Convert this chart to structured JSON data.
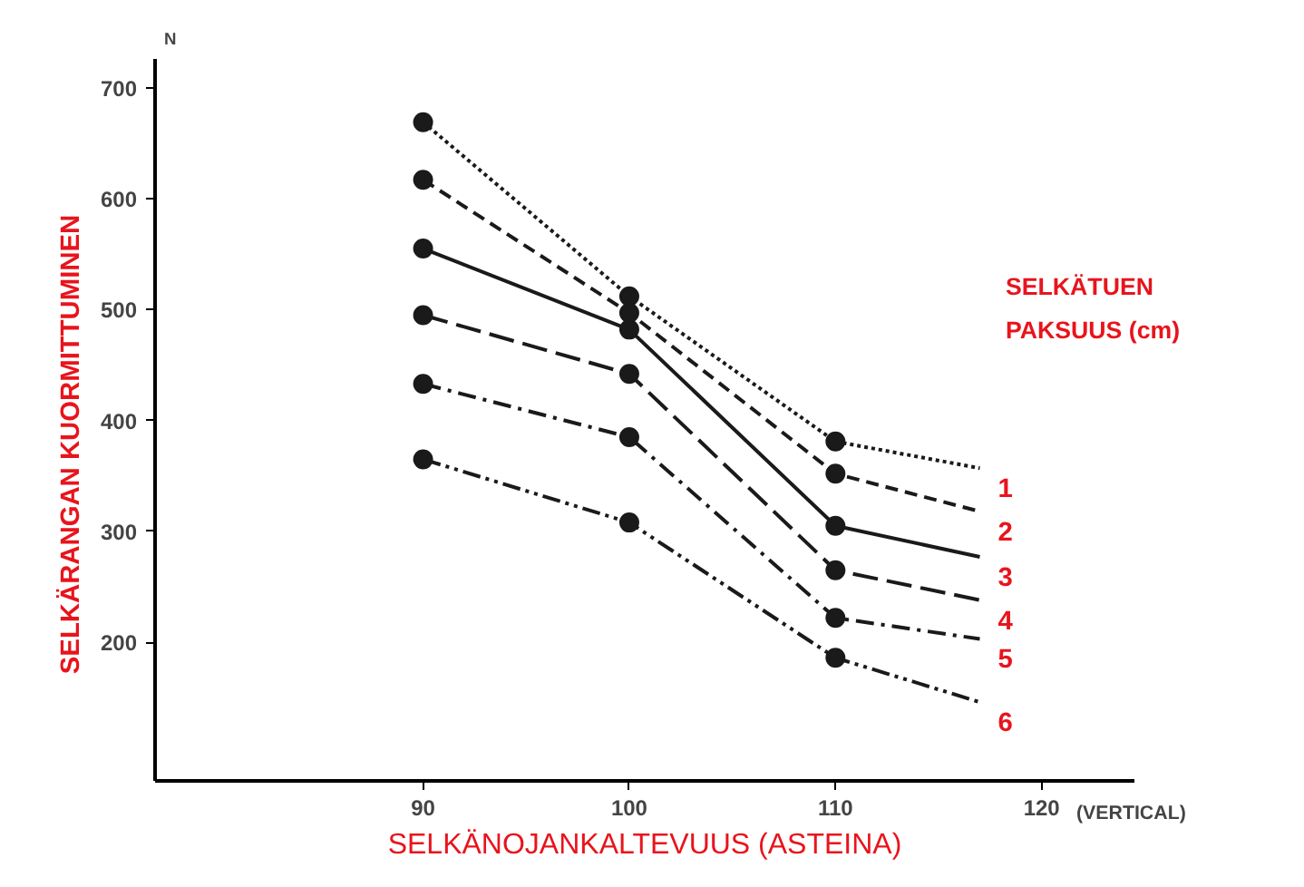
{
  "chart_data": {
    "type": "line",
    "xlabel": "SELKÄNOJANKALTEVUUS (ASTEINA)",
    "ylabel": "SELKÄRANGAN KUORMITTUMINEN",
    "legend_title": "SELKÄTUEN PAKSUUS (cm)",
    "annotations": [
      "N",
      "(VERTICAL)"
    ],
    "xlim": [
      77,
      124.5
    ],
    "ylim": [
      75,
      726
    ],
    "xticks": [
      90,
      100,
      110,
      120
    ],
    "yticks": [
      200,
      300,
      400,
      500,
      600,
      700
    ],
    "grid": false,
    "series": [
      {
        "name": "1",
        "type": "line",
        "marker": "none",
        "line_style": "dotted",
        "color": "#1a1a1a",
        "x": [
          90,
          100,
          110,
          117
        ],
        "values": [
          669,
          512,
          381,
          357
        ]
      },
      {
        "name": "2",
        "type": "line",
        "marker": "none",
        "line_style": "dashed",
        "color": "#1a1a1a",
        "x": [
          90,
          100,
          110,
          117
        ],
        "values": [
          617,
          497,
          352,
          318
        ]
      },
      {
        "name": "3",
        "type": "line",
        "marker": "none",
        "line_style": "solid",
        "color": "#1a1a1a",
        "x": [
          90,
          100,
          110,
          117
        ],
        "values": [
          555,
          482,
          305,
          277
        ]
      },
      {
        "name": "4",
        "type": "line",
        "marker": "none",
        "line_style": "longdash",
        "color": "#1a1a1a",
        "x": [
          90,
          100,
          110,
          117
        ],
        "values": [
          495,
          442,
          265,
          238
        ]
      },
      {
        "name": "5",
        "type": "line",
        "marker": "none",
        "line_style": "dashdot",
        "color": "#1a1a1a",
        "x": [
          90,
          100,
          110,
          117
        ],
        "values": [
          433,
          385,
          222,
          203
        ]
      },
      {
        "name": "6",
        "type": "line",
        "marker": "none",
        "line_style": "dashdotdot",
        "color": "#1a1a1a",
        "x": [
          90,
          100,
          110,
          117
        ],
        "values": [
          365,
          308,
          186,
          146
        ]
      },
      {
        "type": "scatter",
        "marker": "circle",
        "color": "#1a1a1a",
        "x": [
          90,
          100,
          110
        ],
        "values": [
          669,
          512,
          381
        ]
      },
      {
        "type": "scatter",
        "marker": "circle",
        "color": "#1a1a1a",
        "x": [
          90,
          100,
          110
        ],
        "values": [
          617,
          497,
          352
        ]
      },
      {
        "type": "scatter",
        "marker": "circle",
        "color": "#1a1a1a",
        "x": [
          90,
          100,
          110
        ],
        "values": [
          555,
          482,
          305
        ]
      },
      {
        "type": "scatter",
        "marker": "circle",
        "color": "#1a1a1a",
        "x": [
          90,
          100,
          110
        ],
        "values": [
          495,
          442,
          265
        ]
      },
      {
        "type": "scatter",
        "marker": "circle",
        "color": "#1a1a1a",
        "x": [
          90,
          100,
          110
        ],
        "values": [
          433,
          385,
          222
        ]
      },
      {
        "type": "scatter",
        "marker": "circle",
        "color": "#1a1a1a",
        "x": [
          90,
          100,
          110
        ],
        "values": [
          365,
          308,
          186
        ]
      }
    ]
  }
}
